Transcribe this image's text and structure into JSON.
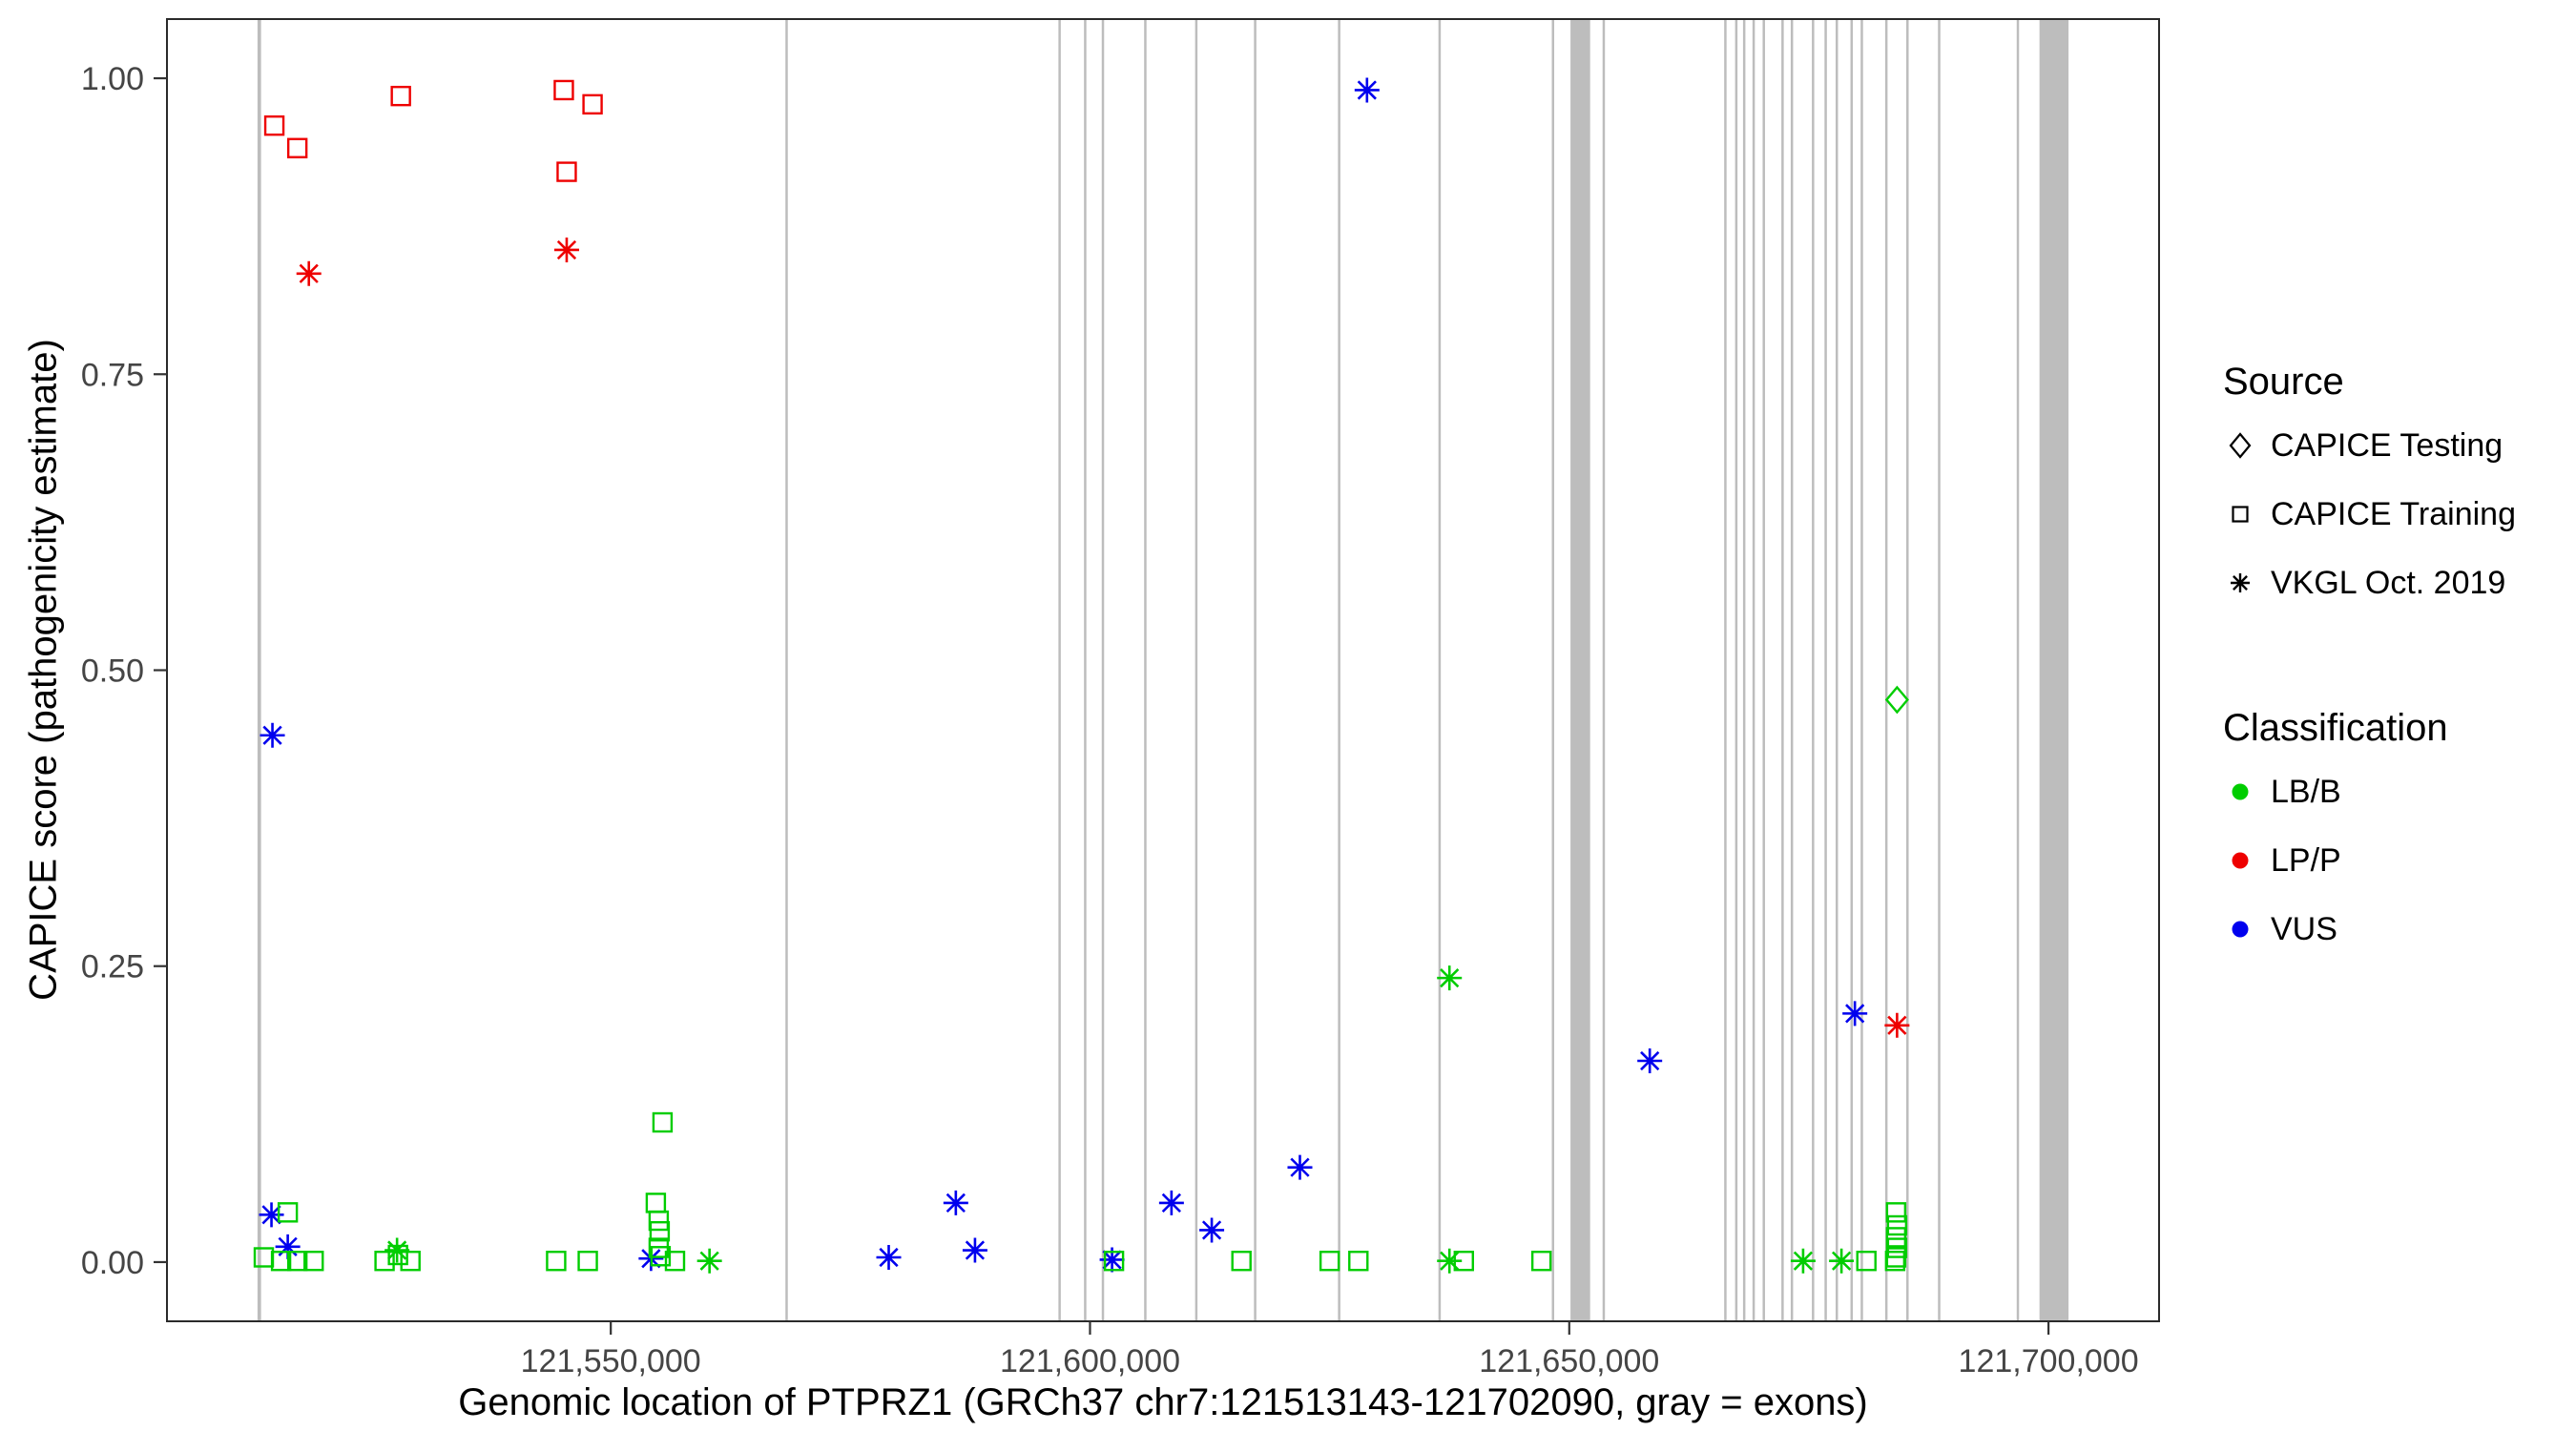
{
  "chart_data": {
    "type": "scatter",
    "title": "",
    "xlabel": "Genomic location of PTPRZ1 (GRCh37 chr7:121513143-121702090, gray = exons)",
    "ylabel": "CAPICE score (pathogenicity estimate)",
    "xlim": [
      121503696,
      121711537
    ],
    "ylim": [
      -0.05,
      1.05
    ],
    "grid": false,
    "legend_position": "right",
    "xticks": [
      {
        "v": 121550000,
        "label": "121,550,000"
      },
      {
        "v": 121600000,
        "label": "121,600,000"
      },
      {
        "v": 121650000,
        "label": "121,650,000"
      },
      {
        "v": 121700000,
        "label": "121,700,000"
      }
    ],
    "yticks": [
      {
        "v": 0.0,
        "label": "0.00"
      },
      {
        "v": 0.25,
        "label": "0.25"
      },
      {
        "v": 0.5,
        "label": "0.50"
      },
      {
        "v": 0.75,
        "label": "0.75"
      },
      {
        "v": 1.0,
        "label": "1.00"
      }
    ],
    "exon_color": "#bdbdbd",
    "exons": [
      [
        121513143,
        121513513
      ],
      [
        121568222,
        121568432
      ],
      [
        121596704,
        121596839
      ],
      [
        121599373,
        121599501
      ],
      [
        121601223,
        121601385
      ],
      [
        121605646,
        121605786
      ],
      [
        121610966,
        121611088
      ],
      [
        121617106,
        121617238
      ],
      [
        121625870,
        121626023
      ],
      [
        121636351,
        121636528
      ],
      [
        121648179,
        121648360
      ],
      [
        121650129,
        121652179
      ],
      [
        121653476,
        121653610
      ],
      [
        121666165,
        121666281
      ],
      [
        121667304,
        121667431
      ],
      [
        121668129,
        121668253
      ],
      [
        121669116,
        121669245
      ],
      [
        121670174,
        121670297
      ],
      [
        121672130,
        121672243
      ],
      [
        121673107,
        121673239
      ],
      [
        121675312,
        121675420
      ],
      [
        121676631,
        121676752
      ],
      [
        121677792,
        121677906
      ],
      [
        121679340,
        121679459
      ],
      [
        121680402,
        121680513
      ],
      [
        121682960,
        121683072
      ],
      [
        121685161,
        121685273
      ],
      [
        121688470,
        121688580
      ],
      [
        121696682,
        121696889
      ],
      [
        121699061,
        121702090
      ]
    ],
    "classification_colors": {
      "LB/B": "#00CD00",
      "LP/P": "#EE0000",
      "VUS": "#0000EE"
    },
    "shape_by_source": {
      "CAPICE Testing": "diamond",
      "CAPICE Training": "square",
      "VKGL Oct. 2019": "asterisk"
    },
    "series": [
      {
        "source": "CAPICE Training",
        "classification": "LP/P",
        "shape": "square",
        "points": [
          [
            121514900,
            0.96
          ],
          [
            121517300,
            0.941
          ],
          [
            121528100,
            0.985
          ],
          [
            121545100,
            0.99
          ],
          [
            121548100,
            0.978
          ],
          [
            121545400,
            0.921
          ]
        ]
      },
      {
        "source": "VKGL Oct. 2019",
        "classification": "LP/P",
        "shape": "asterisk",
        "points": [
          [
            121518500,
            0.835
          ],
          [
            121545400,
            0.855
          ],
          [
            121684200,
            0.2
          ]
        ]
      },
      {
        "source": "VKGL Oct. 2019",
        "classification": "VUS",
        "shape": "asterisk",
        "points": [
          [
            121514700,
            0.445
          ],
          [
            121514600,
            0.04
          ],
          [
            121516300,
            0.013
          ],
          [
            121554200,
            0.003
          ],
          [
            121579000,
            0.004
          ],
          [
            121586000,
            0.05
          ],
          [
            121588000,
            0.01
          ],
          [
            121602300,
            0.002
          ],
          [
            121608500,
            0.05
          ],
          [
            121612700,
            0.027
          ],
          [
            121621900,
            0.08
          ],
          [
            121628900,
            0.99
          ],
          [
            121658400,
            0.17
          ],
          [
            121679800,
            0.21
          ]
        ]
      },
      {
        "source": "CAPICE Testing",
        "classification": "LB/B",
        "shape": "diamond",
        "points": [
          [
            121684200,
            0.475
          ]
        ]
      },
      {
        "source": "CAPICE Training",
        "classification": "LB/B",
        "shape": "square",
        "points": [
          [
            121516300,
            0.042
          ],
          [
            121513800,
            0.004
          ],
          [
            121515600,
            0.001
          ],
          [
            121517300,
            0.001
          ],
          [
            121519000,
            0.001
          ],
          [
            121526400,
            0.001
          ],
          [
            121527800,
            0.006
          ],
          [
            121529100,
            0.001
          ],
          [
            121544300,
            0.001
          ],
          [
            121547600,
            0.001
          ],
          [
            121555400,
            0.118
          ],
          [
            121554700,
            0.05
          ],
          [
            121555000,
            0.035
          ],
          [
            121555100,
            0.026
          ],
          [
            121555000,
            0.012
          ],
          [
            121555200,
            0.005
          ],
          [
            121556700,
            0.001
          ],
          [
            121602500,
            0.001
          ],
          [
            121615800,
            0.001
          ],
          [
            121625000,
            0.001
          ],
          [
            121628000,
            0.001
          ],
          [
            121639000,
            0.001
          ],
          [
            121647100,
            0.001
          ],
          [
            121681000,
            0.001
          ],
          [
            121684100,
            0.042
          ],
          [
            121684200,
            0.031
          ],
          [
            121684100,
            0.021
          ],
          [
            121684200,
            0.012
          ],
          [
            121684100,
            0.004
          ],
          [
            121684000,
            0.001
          ]
        ]
      },
      {
        "source": "VKGL Oct. 2019",
        "classification": "LB/B",
        "shape": "asterisk",
        "points": [
          [
            121527700,
            0.01
          ],
          [
            121560300,
            0.001
          ],
          [
            121637500,
            0.24
          ],
          [
            121637500,
            0.001
          ],
          [
            121674400,
            0.001
          ],
          [
            121678400,
            0.001
          ]
        ]
      }
    ]
  },
  "legend": {
    "source": {
      "title": "Source",
      "items": [
        {
          "label": "CAPICE Testing",
          "shape": "diamond"
        },
        {
          "label": "CAPICE Training",
          "shape": "square"
        },
        {
          "label": "VKGL Oct. 2019",
          "shape": "asterisk"
        }
      ]
    },
    "classification": {
      "title": "Classification",
      "items": [
        {
          "label": "LB/B",
          "color": "#00CD00"
        },
        {
          "label": "LP/P",
          "color": "#EE0000"
        },
        {
          "label": "VUS",
          "color": "#0000EE"
        }
      ]
    }
  }
}
